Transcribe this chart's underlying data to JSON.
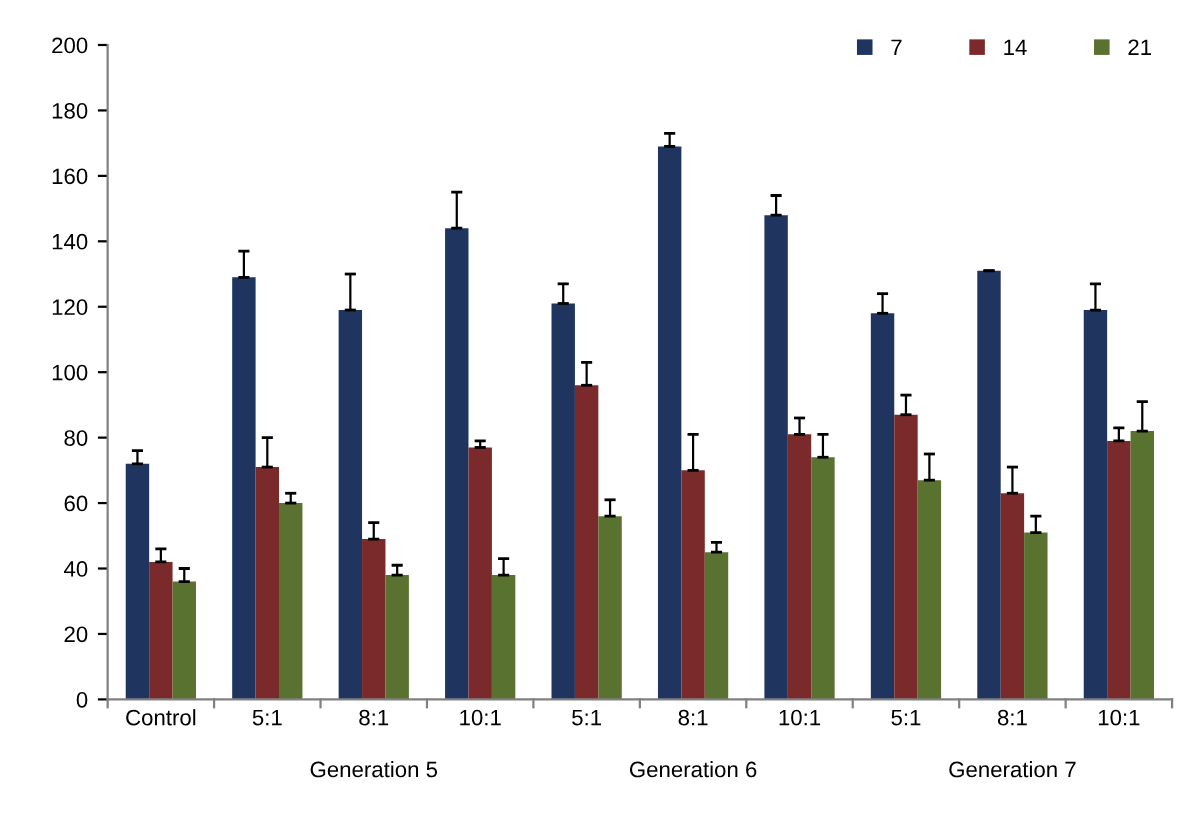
{
  "chart_data": {
    "type": "bar",
    "categories": [
      "Control",
      "5:1",
      "8:1",
      "10:1",
      "5:1",
      "8:1",
      "10:1",
      "5:1",
      "8:1",
      "10:1"
    ],
    "series": [
      {
        "name": "7",
        "color": "#1f3560",
        "values": [
          72,
          129,
          119,
          144,
          121,
          169,
          148,
          118,
          131,
          119
        ],
        "errors": [
          [
            72,
            76
          ],
          [
            129,
            137
          ],
          [
            119,
            130
          ],
          [
            144,
            155
          ],
          [
            121,
            127
          ],
          [
            169,
            173
          ],
          [
            148,
            154
          ],
          [
            118,
            124
          ],
          [
            131,
            131
          ],
          [
            119,
            127
          ]
        ]
      },
      {
        "name": "14",
        "color": "#7a2a2a",
        "values": [
          42,
          71,
          49,
          77,
          96,
          70,
          81,
          87,
          63,
          79
        ],
        "errors": [
          [
            42,
            46
          ],
          [
            71,
            80
          ],
          [
            49,
            54
          ],
          [
            77,
            79
          ],
          [
            96,
            103
          ],
          [
            70,
            81
          ],
          [
            81,
            86
          ],
          [
            87,
            93
          ],
          [
            63,
            71
          ],
          [
            79,
            83
          ]
        ]
      },
      {
        "name": "21",
        "color": "#5a7230",
        "values": [
          36,
          60,
          38,
          38,
          56,
          45,
          74,
          67,
          51,
          82
        ],
        "errors": [
          [
            36,
            40
          ],
          [
            60,
            63
          ],
          [
            38,
            41
          ],
          [
            38,
            43
          ],
          [
            56,
            61
          ],
          [
            45,
            48
          ],
          [
            74,
            81
          ],
          [
            67,
            75
          ],
          [
            51,
            56
          ],
          [
            82,
            91
          ]
        ]
      }
    ],
    "ylim": [
      0,
      200
    ],
    "yticks": [
      0,
      20,
      40,
      60,
      80,
      100,
      120,
      140,
      160,
      180,
      200
    ],
    "annotations": [
      "Generation 5",
      "Generation 6",
      "Generation 7"
    ],
    "legend": "top right",
    "grid": false
  }
}
